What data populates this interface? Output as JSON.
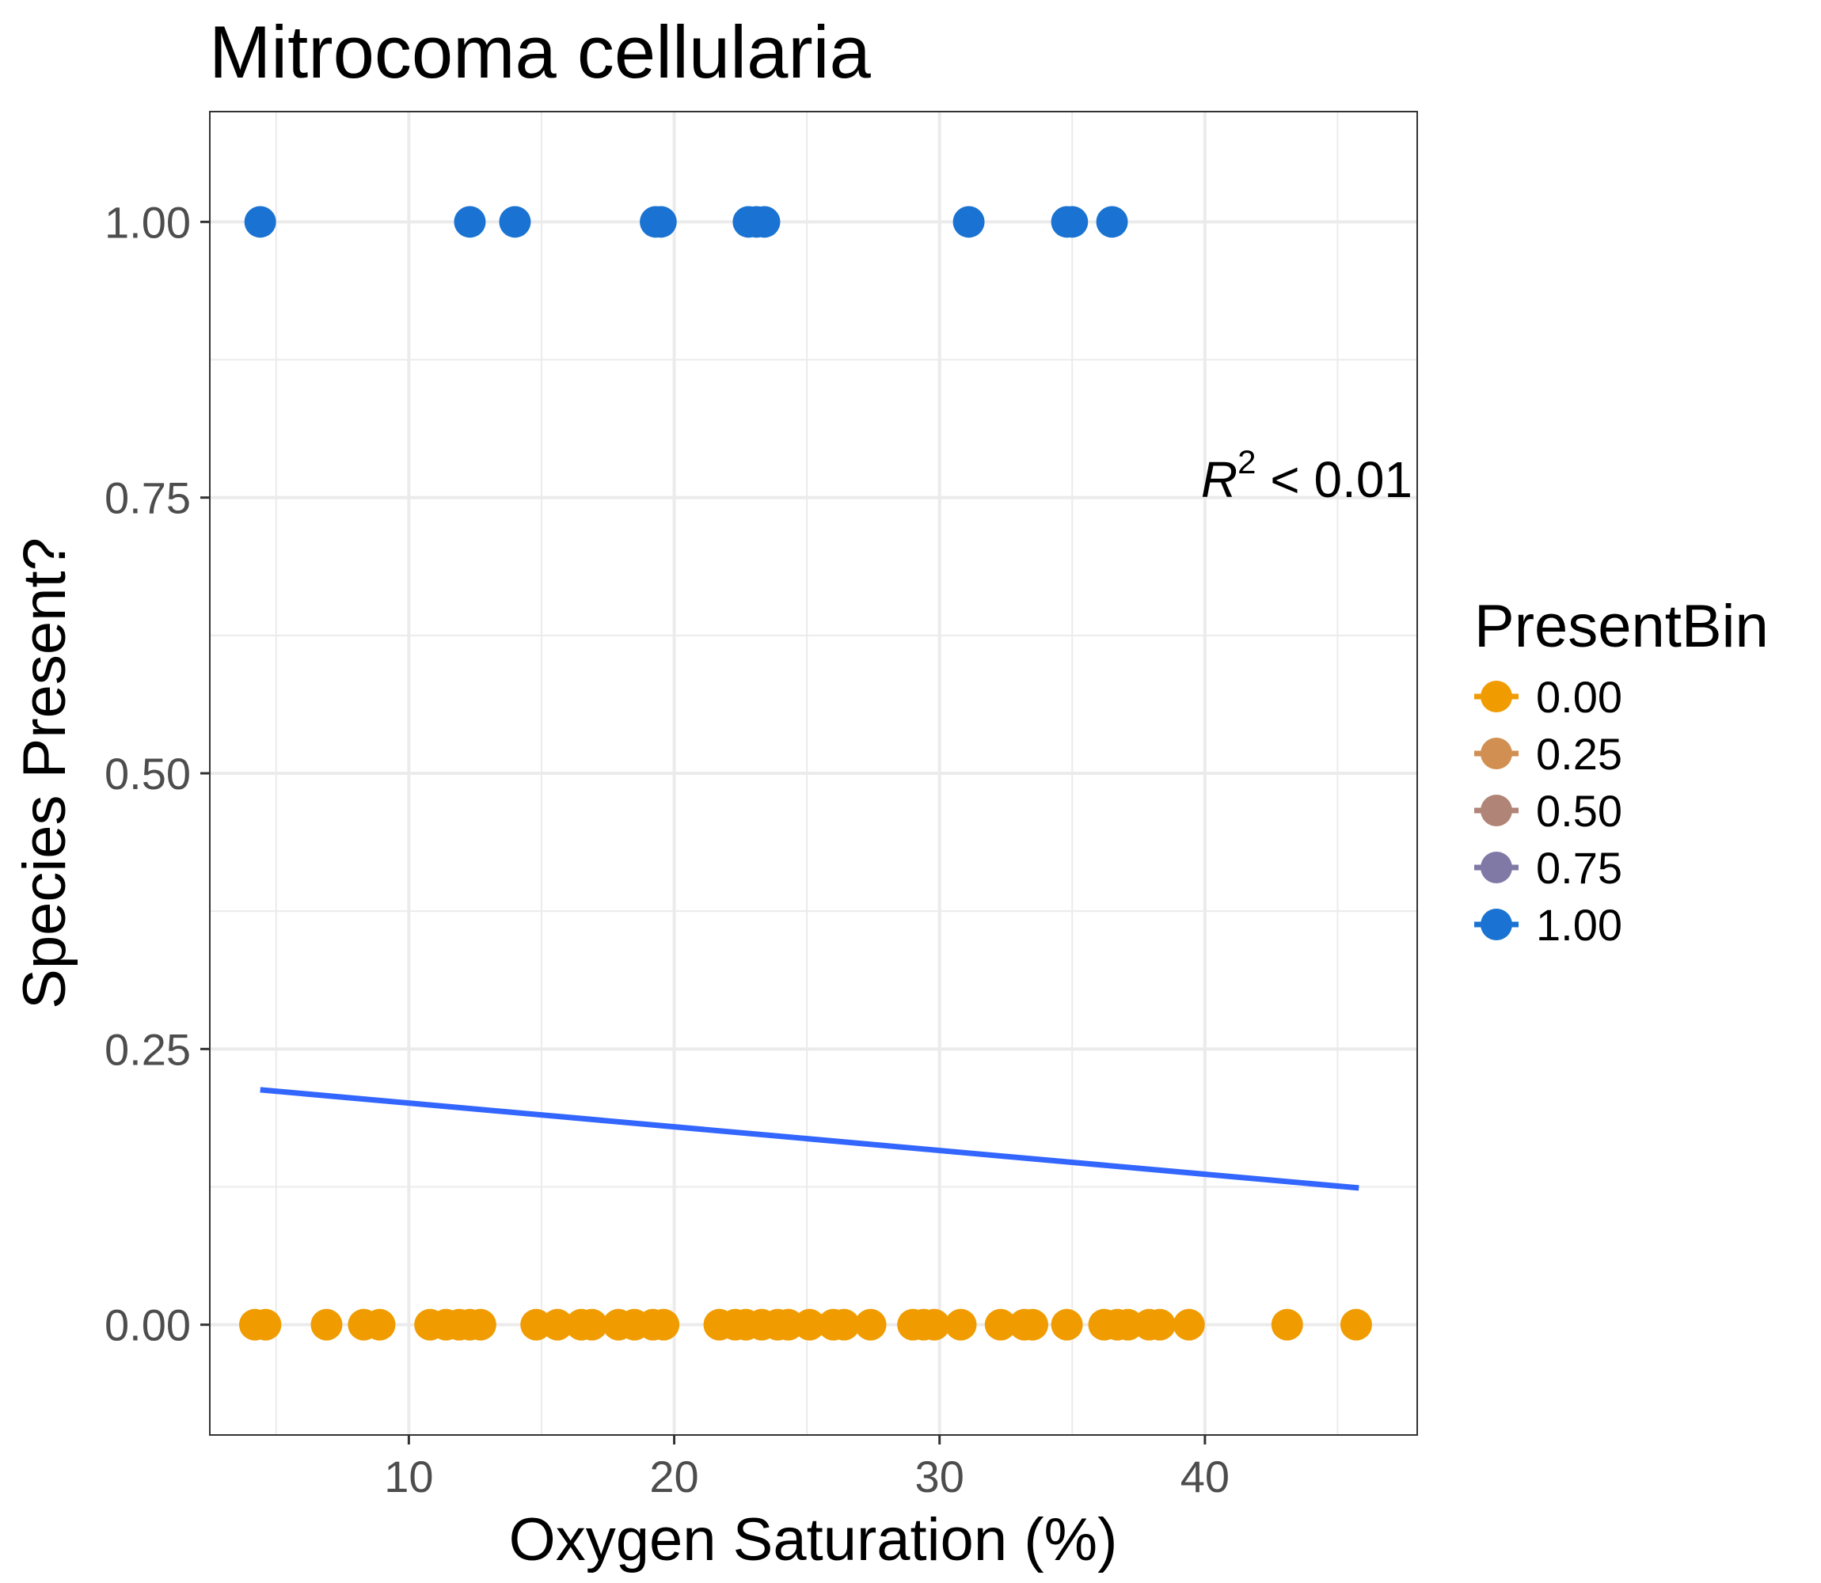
{
  "chart_data": {
    "type": "scatter",
    "title": "Mitrocoma cellularia",
    "xlabel": "Oxygen Saturation (%)",
    "ylabel": "Species Present?",
    "xlim": [
      2.5,
      48
    ],
    "ylim": [
      -0.1,
      1.1
    ],
    "x_ticks": [
      10,
      20,
      30,
      40
    ],
    "x_tick_labels": [
      "10",
      "20",
      "30",
      "40"
    ],
    "y_ticks": [
      0,
      0.25,
      0.5,
      0.75,
      1
    ],
    "y_tick_labels": [
      "0.00",
      "0.25",
      "0.50",
      "0.75",
      "1.00"
    ],
    "grid": true,
    "legend": {
      "title": "PresentBin",
      "placement": "right",
      "entries": [
        {
          "label": "0.00",
          "color": "#F09C00"
        },
        {
          "label": "0.25",
          "color": "#D18F52"
        },
        {
          "label": "0.50",
          "color": "#B08476"
        },
        {
          "label": "0.75",
          "color": "#8079A5"
        },
        {
          "label": "1.00",
          "color": "#1A73D2"
        }
      ]
    },
    "annotation": {
      "r": "R",
      "exp": "2",
      "rest": " < 0.01"
    },
    "series": [
      {
        "present_bin": 1.0,
        "color": "#1A73D2",
        "x": [
          4.4,
          12.3,
          14.0,
          19.3,
          19.5,
          22.8,
          23.1,
          23.4,
          31.1,
          34.8,
          35.0,
          36.5
        ],
        "y": [
          1,
          1,
          1,
          1,
          1,
          1,
          1,
          1,
          1,
          1,
          1,
          1
        ]
      },
      {
        "present_bin": 0.0,
        "color": "#F09C00",
        "x": [
          4.2,
          4.6,
          6.9,
          8.3,
          8.9,
          10.8,
          11.4,
          11.9,
          12.3,
          12.7,
          14.8,
          15.6,
          16.5,
          16.9,
          17.9,
          18.5,
          19.2,
          19.6,
          21.7,
          22.3,
          22.7,
          23.3,
          23.9,
          24.3,
          25.1,
          26.0,
          26.4,
          27.4,
          29.0,
          29.4,
          29.8,
          30.8,
          32.3,
          33.2,
          33.5,
          34.8,
          36.2,
          36.7,
          37.1,
          37.9,
          38.3,
          39.4,
          43.1,
          45.7
        ],
        "y": [
          0,
          0,
          0,
          0,
          0,
          0,
          0,
          0,
          0,
          0,
          0,
          0,
          0,
          0,
          0,
          0,
          0,
          0,
          0,
          0,
          0,
          0,
          0,
          0,
          0,
          0,
          0,
          0,
          0,
          0,
          0,
          0,
          0,
          0,
          0,
          0,
          0,
          0,
          0,
          0,
          0,
          0,
          0,
          0
        ]
      }
    ],
    "fit_line": {
      "color": "#3366FF",
      "x": [
        4.4,
        45.8
      ],
      "y": [
        0.213,
        0.124
      ]
    }
  }
}
